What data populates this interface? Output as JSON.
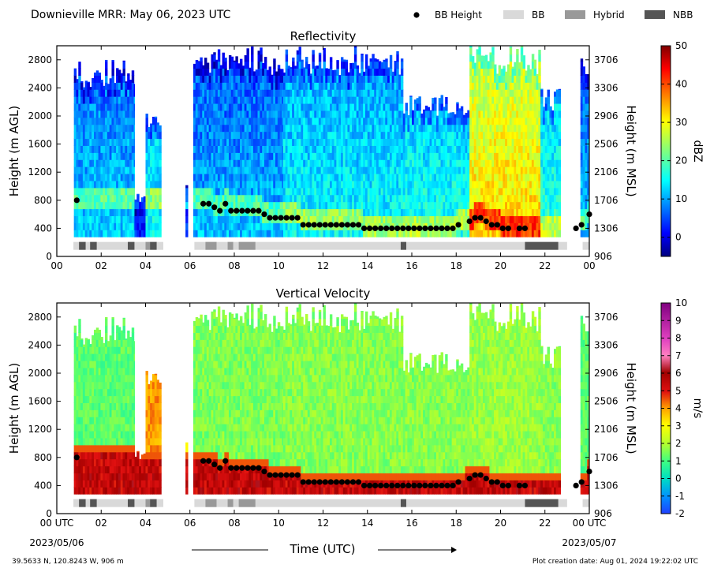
{
  "figure_title": "Downieville MRR:  May 06, 2023 UTC",
  "legend": [
    {
      "label": "BB Height",
      "kind": "dot",
      "color": "#000000"
    },
    {
      "label": "BB",
      "kind": "box",
      "color": "#d9d9d9"
    },
    {
      "label": "Hybrid",
      "kind": "box",
      "color": "#999999"
    },
    {
      "label": "NBB",
      "kind": "box",
      "color": "#555555"
    }
  ],
  "footer": {
    "location": "39.5633 N, 120.8243 W, 906 m",
    "creation": "Plot creation date: Aug 01, 2024 19:22:02 UTC",
    "date_start": "2023/05/06",
    "date_end": "2023/05/07"
  },
  "chart_data": [
    {
      "type": "heatmap",
      "title": "Reflectivity",
      "xlabel": "",
      "ylabel": "Height (m AGL)",
      "ylabel_right": "Height (m MSL)",
      "xlim": [
        0,
        24
      ],
      "ylim": [
        0,
        3000
      ],
      "x_ticks": [
        "00",
        "02",
        "04",
        "06",
        "08",
        "10",
        "12",
        "14",
        "16",
        "18",
        "20",
        "22",
        "00"
      ],
      "y_ticks": [
        0,
        400,
        800,
        1200,
        1600,
        2000,
        2400,
        2800
      ],
      "y_ticks_right": [
        906,
        1306,
        1706,
        2106,
        2506,
        2906,
        3306,
        3706
      ],
      "colorbar": {
        "label": "dBZ",
        "min": -5,
        "max": 50,
        "ticks": [
          0,
          10,
          20,
          30,
          40,
          50
        ],
        "scale": "jet"
      }
    },
    {
      "type": "heatmap",
      "title": "Vertical Velocity",
      "xlabel": "Time (UTC)",
      "ylabel": "Height (m AGL)",
      "ylabel_right": "Height (m MSL)",
      "xlim": [
        0,
        24
      ],
      "ylim": [
        0,
        3000
      ],
      "x_ticks": [
        "00 UTC",
        "02",
        "04",
        "06",
        "08",
        "10",
        "12",
        "14",
        "16",
        "18",
        "20",
        "22",
        "00 UTC"
      ],
      "y_ticks": [
        0,
        400,
        800,
        1200,
        1600,
        2000,
        2400,
        2800
      ],
      "y_ticks_right": [
        906,
        1306,
        1706,
        2106,
        2506,
        2906,
        3306,
        3706
      ],
      "colorbar": {
        "label": "m/s",
        "min": -2,
        "max": 10,
        "ticks": [
          -2,
          -1,
          0,
          1,
          2,
          3,
          4,
          5,
          6,
          7,
          8,
          9,
          10
        ],
        "scale": "velocity"
      }
    }
  ],
  "precip_segments": [
    {
      "t0": 0.77,
      "t1": 3.5,
      "top": 2800,
      "refl": 13,
      "vv": 1.2
    },
    {
      "t0": 3.5,
      "t1": 4.0,
      "top": 900,
      "refl": 3,
      "vv": 4
    },
    {
      "t0": 4.0,
      "t1": 4.7,
      "top": 2050,
      "refl": 16,
      "vv": 4
    },
    {
      "t0": 5.8,
      "t1": 5.9,
      "top": 1100,
      "refl": 5,
      "vv": 3
    },
    {
      "t0": 6.15,
      "t1": 10.2,
      "top": 3000,
      "refl": 12,
      "vv": 1.5
    },
    {
      "t0": 10.2,
      "t1": 15.6,
      "top": 3000,
      "refl": 16,
      "vv": 1.6
    },
    {
      "t0": 15.6,
      "t1": 18.6,
      "top": 2300,
      "refl": 17,
      "vv": 1.6
    },
    {
      "t0": 18.6,
      "t1": 21.8,
      "top": 3000,
      "refl": 33,
      "vv": 1.8
    },
    {
      "t0": 21.8,
      "t1": 22.7,
      "top": 2400,
      "refl": 18,
      "vv": 1.6
    },
    {
      "t0": 23.6,
      "t1": 24.0,
      "top": 3000,
      "refl": 12,
      "vv": 1.2
    }
  ],
  "bb_height": {
    "time": [
      0.9,
      6.6,
      6.85,
      7.1,
      7.35,
      7.6,
      7.85,
      8.1,
      8.35,
      8.6,
      8.85,
      9.1,
      9.35,
      9.6,
      9.85,
      10.1,
      10.35,
      10.6,
      10.85,
      11.1,
      11.35,
      11.6,
      11.85,
      12.1,
      12.35,
      12.6,
      12.85,
      13.1,
      13.35,
      13.6,
      13.85,
      14.1,
      14.35,
      14.6,
      14.85,
      15.1,
      15.35,
      15.6,
      15.85,
      16.1,
      16.35,
      16.6,
      16.85,
      17.1,
      17.35,
      17.6,
      17.85,
      18.1,
      18.6,
      18.85,
      19.1,
      19.35,
      19.6,
      19.85,
      20.1,
      20.35,
      20.85,
      21.1,
      23.4,
      23.65,
      24.0
    ],
    "height": [
      800,
      750,
      750,
      700,
      650,
      750,
      650,
      650,
      650,
      650,
      650,
      650,
      600,
      550,
      550,
      550,
      550,
      550,
      550,
      450,
      450,
      450,
      450,
      450,
      450,
      450,
      450,
      450,
      450,
      450,
      400,
      400,
      400,
      400,
      400,
      400,
      400,
      400,
      400,
      400,
      400,
      400,
      400,
      400,
      400,
      400,
      400,
      450,
      500,
      550,
      550,
      500,
      450,
      450,
      400,
      400,
      400,
      400,
      400,
      450,
      600
    ]
  },
  "bb_type": [
    {
      "t0": 0.75,
      "t1": 4.8,
      "type": "BB"
    },
    {
      "t0": 1.0,
      "t1": 1.3,
      "type": "NBB"
    },
    {
      "t0": 1.5,
      "t1": 1.8,
      "type": "NBB"
    },
    {
      "t0": 3.2,
      "t1": 3.5,
      "type": "NBB"
    },
    {
      "t0": 4.0,
      "t1": 4.2,
      "type": "Hybrid"
    },
    {
      "t0": 4.2,
      "t1": 4.5,
      "type": "NBB"
    },
    {
      "t0": 6.2,
      "t1": 23.0,
      "type": "BB"
    },
    {
      "t0": 6.7,
      "t1": 7.2,
      "type": "Hybrid"
    },
    {
      "t0": 7.7,
      "t1": 7.95,
      "type": "Hybrid"
    },
    {
      "t0": 8.2,
      "t1": 8.95,
      "type": "Hybrid"
    },
    {
      "t0": 15.5,
      "t1": 15.75,
      "type": "NBB"
    },
    {
      "t0": 21.1,
      "t1": 22.6,
      "type": "NBB"
    },
    {
      "t0": 23.7,
      "t1": 24.0,
      "type": "BB"
    }
  ]
}
